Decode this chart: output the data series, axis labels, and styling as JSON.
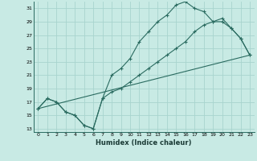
{
  "xlabel": "Humidex (Indice chaleur)",
  "bg_color": "#c8eae4",
  "line_color": "#2a6b60",
  "grid_color": "#a8d4ce",
  "xlim": [
    -0.5,
    23.5
  ],
  "ylim": [
    12.5,
    32
  ],
  "yticks": [
    13,
    15,
    17,
    19,
    21,
    23,
    25,
    27,
    29,
    31
  ],
  "xticks": [
    0,
    1,
    2,
    3,
    4,
    5,
    6,
    7,
    8,
    9,
    10,
    11,
    12,
    13,
    14,
    15,
    16,
    17,
    18,
    19,
    20,
    21,
    22,
    23
  ],
  "line1_x": [
    0,
    1,
    2,
    3,
    4,
    5,
    6,
    7,
    8,
    9,
    10,
    11,
    12,
    13,
    14,
    15,
    16,
    17,
    18,
    19,
    20,
    21,
    22,
    23
  ],
  "line1_y": [
    16,
    17.5,
    17,
    15.5,
    15,
    13.5,
    13,
    17.5,
    21,
    22,
    23.5,
    26,
    27.5,
    29,
    30,
    31.5,
    32,
    31,
    30.5,
    29,
    29,
    28,
    26.5,
    24
  ],
  "line2_x": [
    0,
    1,
    2,
    3,
    4,
    5,
    6,
    7,
    8,
    9,
    10,
    11,
    12,
    13,
    14,
    15,
    16,
    17,
    18,
    19,
    20,
    21,
    22,
    23
  ],
  "line2_y": [
    16,
    17.5,
    17,
    15.5,
    15,
    13.5,
    13,
    17.5,
    18.5,
    19,
    20,
    21,
    22,
    23,
    24,
    25,
    26,
    27.5,
    28.5,
    29,
    29.5,
    28,
    26.5,
    24
  ],
  "line3_x": [
    0,
    23
  ],
  "line3_y": [
    16,
    24
  ]
}
